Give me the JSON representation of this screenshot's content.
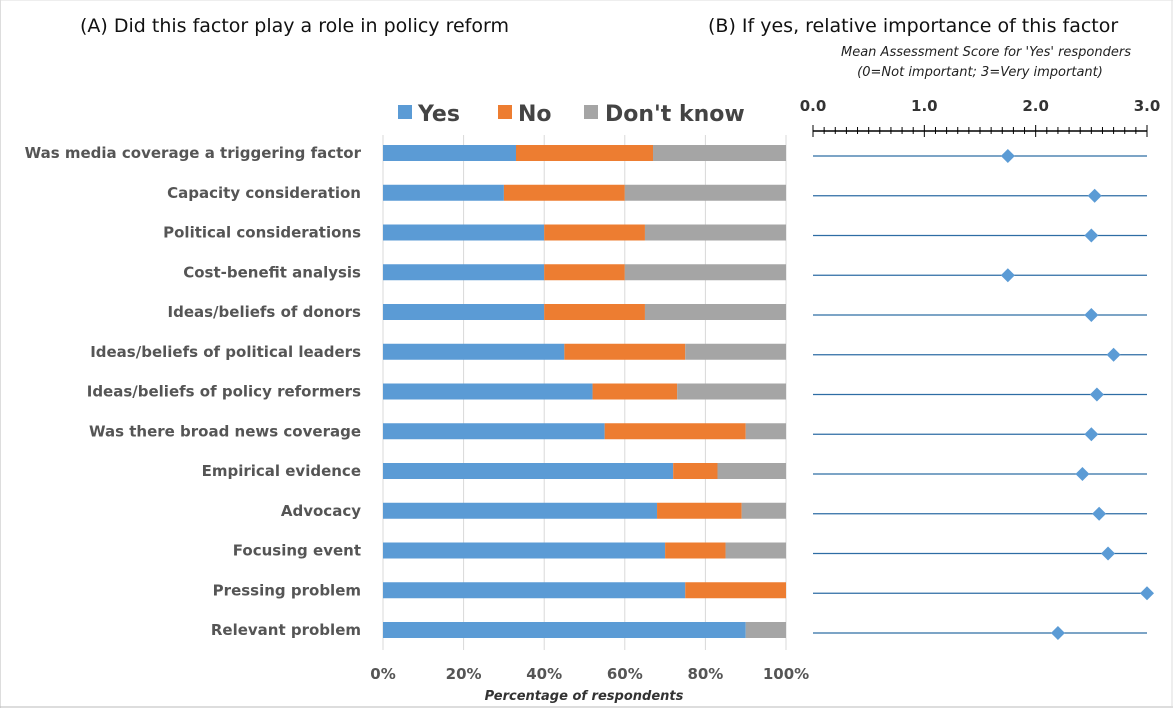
{
  "chart_data": [
    {
      "panel": "A",
      "type": "bar",
      "stacked": true,
      "orientation": "horizontal",
      "title": "(A)  Did this factor play a role in policy reform",
      "xlabel": "Percentage of respondents",
      "x_ticks": [
        "0%",
        "20%",
        "40%",
        "60%",
        "80%",
        "100%"
      ],
      "xlim": [
        0,
        100
      ],
      "grid": true,
      "legend_position": "top",
      "categories": [
        "Was media coverage a triggering factor",
        "Capacity consideration",
        "Political considerations",
        "Cost-benefit analysis",
        "Ideas/beliefs of donors",
        "Ideas/beliefs of political leaders",
        "Ideas/beliefs of policy reformers",
        "Was there broad news coverage",
        "Empirical evidence",
        "Advocacy",
        "Focusing event",
        "Pressing problem",
        "Relevant problem"
      ],
      "series": [
        {
          "name": "Yes",
          "color": "#5b9bd5",
          "values": [
            33,
            30,
            40,
            40,
            40,
            45,
            52,
            55,
            72,
            68,
            70,
            75,
            90
          ]
        },
        {
          "name": "No",
          "color": "#ed7d31",
          "values": [
            34,
            30,
            25,
            20,
            25,
            30,
            21,
            35,
            11,
            21,
            15,
            25,
            0
          ]
        },
        {
          "name": "Don't know",
          "color": "#a5a5a5",
          "values": [
            33,
            40,
            35,
            40,
            35,
            25,
            27,
            10,
            17,
            11,
            15,
            0,
            10
          ]
        }
      ]
    },
    {
      "panel": "B",
      "type": "scatter",
      "title": "(B) If yes, relative importance of this factor",
      "subtitle": [
        "Mean Assessment Score for 'Yes' responders",
        "(0=Not important; 3=Very important)"
      ],
      "x_ticks": [
        "0.0",
        "1.0",
        "2.0",
        "3.0"
      ],
      "xlim": [
        0,
        3
      ],
      "marker": "diamond",
      "color": "#5b9bd5",
      "values": [
        1.75,
        2.53,
        2.5,
        1.75,
        2.5,
        2.7,
        2.55,
        2.5,
        2.42,
        2.57,
        2.65,
        3.0,
        2.2
      ]
    }
  ]
}
